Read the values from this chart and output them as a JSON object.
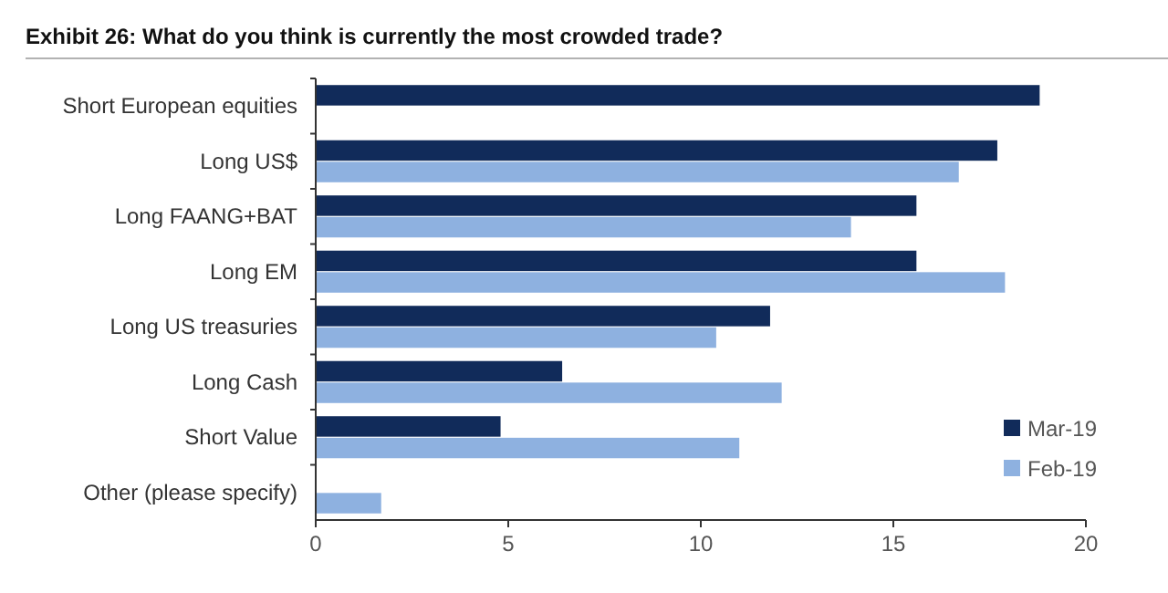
{
  "chart_data": {
    "type": "bar",
    "orientation": "horizontal",
    "title": "Exhibit 26: What do you think is currently the most crowded trade?",
    "categories": [
      "Short European equities",
      "Long US$",
      "Long FAANG+BAT",
      "Long EM",
      "Long US treasuries",
      "Long Cash",
      "Short Value",
      "Other (please specify)"
    ],
    "series": [
      {
        "name": "Mar-19",
        "color": "#112b5a",
        "values": [
          18.8,
          17.7,
          15.6,
          15.6,
          11.8,
          6.4,
          4.8,
          null
        ]
      },
      {
        "name": "Feb-19",
        "color": "#8eb1e0",
        "values": [
          null,
          16.7,
          13.9,
          17.9,
          10.4,
          12.1,
          11.0,
          1.7
        ]
      }
    ],
    "xlim": [
      0,
      20
    ],
    "xticks": [
      0,
      5,
      10,
      15,
      20
    ],
    "legend": "bottom right",
    "grid": false
  }
}
